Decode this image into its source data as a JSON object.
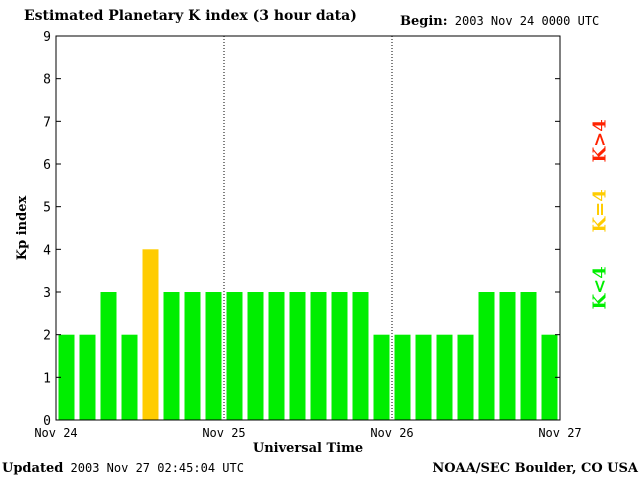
{
  "header": {
    "title": "Estimated Planetary K index (3 hour data)",
    "begin_label": "Begin:",
    "begin_value": "2003 Nov 24 0000 UTC"
  },
  "footer": {
    "updated_label": "Updated",
    "updated_value": "2003 Nov 27 02:45:04 UTC",
    "credit": "NOAA/SEC Boulder, CO USA"
  },
  "legend": {
    "below": {
      "label": "K<4",
      "color": "#00ee00"
    },
    "equal": {
      "label": "K=4",
      "color": "#ffcc00"
    },
    "above": {
      "label": "K>4",
      "color": "#ff2200"
    }
  },
  "chart_data": {
    "type": "bar",
    "title": "Estimated Planetary K index (3 hour data)",
    "xlabel": "Universal Time",
    "ylabel": "Kp index",
    "ylim": [
      0,
      9
    ],
    "yticks": [
      0,
      1,
      2,
      3,
      4,
      5,
      6,
      7,
      8,
      9
    ],
    "xtick_labels": [
      "Nov 24",
      "Nov 25",
      "Nov 26",
      "Nov 27"
    ],
    "day_dividers": true,
    "values": [
      2,
      2,
      3,
      2,
      4,
      3,
      3,
      3,
      3,
      3,
      3,
      3,
      3,
      3,
      3,
      2,
      2,
      2,
      2,
      2,
      3,
      3,
      3,
      2
    ],
    "colors": {
      "below_4": "#00ee00",
      "equal_4": "#ffcc00",
      "above_4": "#ff2200"
    }
  }
}
